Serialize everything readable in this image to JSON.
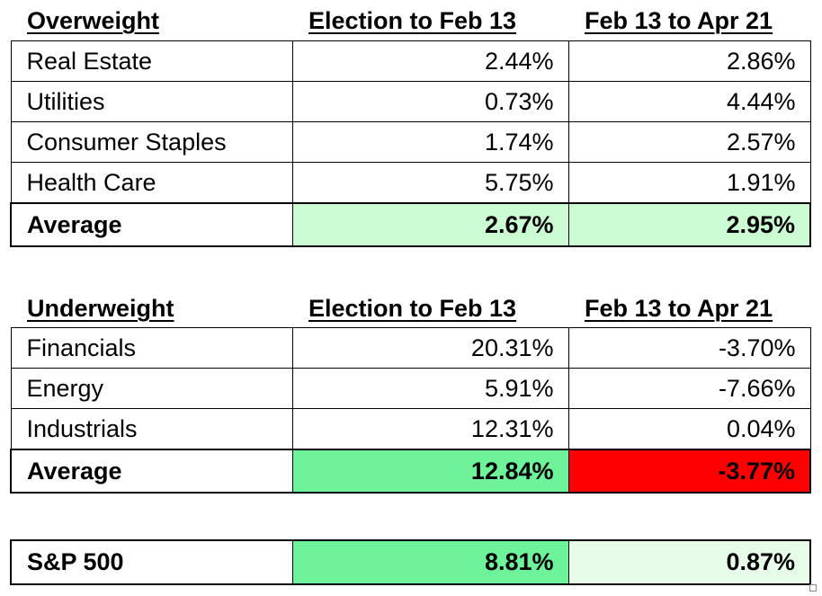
{
  "colors": {
    "light_green": "#ccfcd2",
    "green": "#6ef29a",
    "red": "#ff0000",
    "pale_green": "#e8fcea"
  },
  "overweight": {
    "header": "Overweight",
    "col1": "Election to Feb 13",
    "col2": "Feb 13 to Apr 21",
    "rows": [
      {
        "sector": "Real Estate",
        "v1": "2.44%",
        "v2": "2.86%"
      },
      {
        "sector": "Utilities",
        "v1": "0.73%",
        "v2": "4.44%"
      },
      {
        "sector": "Consumer Staples",
        "v1": "1.74%",
        "v2": "2.57%"
      },
      {
        "sector": "Health Care",
        "v1": "5.75%",
        "v2": "1.91%"
      }
    ],
    "average": {
      "label": "Average",
      "v1": "2.67%",
      "v2": "2.95%"
    }
  },
  "underweight": {
    "header": "Underweight",
    "col1": "Election to Feb 13",
    "col2": "Feb 13 to Apr 21",
    "rows": [
      {
        "sector": "Financials",
        "v1": "20.31%",
        "v2": "-3.70%"
      },
      {
        "sector": "Energy",
        "v1": "5.91%",
        "v2": "-7.66%"
      },
      {
        "sector": "Industrials",
        "v1": "12.31%",
        "v2": "0.04%"
      }
    ],
    "average": {
      "label": "Average",
      "v1": "12.84%",
      "v2": "-3.77%"
    }
  },
  "sp500": {
    "label": "S&P 500",
    "v1": "8.81%",
    "v2": "0.87%"
  }
}
